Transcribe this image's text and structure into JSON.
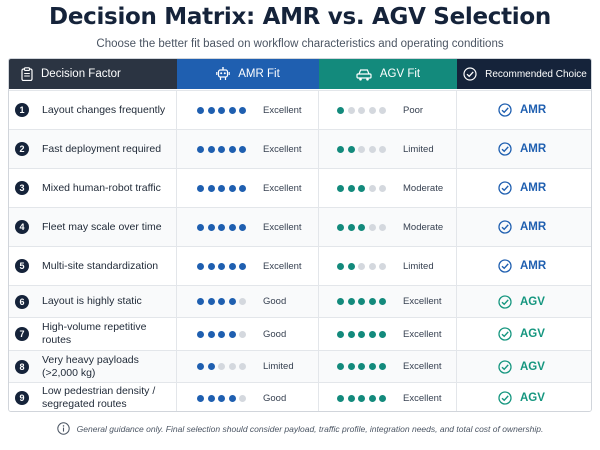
{
  "title": "Decision Matrix: AMR vs. AGV Selection",
  "subtitle": "Choose the better fit based on workflow characteristics and operating conditions",
  "header": {
    "factor_label": "Decision Factor",
    "amr_label": "AMR Fit",
    "agv_label": "AGV Fit",
    "recommended_label": "Recommended Choice"
  },
  "colors": {
    "amr": "#1f5fb0",
    "agv": "#138a7c",
    "dot_empty": "#d4d8de",
    "amr_rec": "#1f5fb0",
    "agv_rec": "#15967f"
  },
  "max_dots": 5,
  "rows": [
    {
      "num": "1",
      "factor": "Layout changes frequently",
      "amr": {
        "score": 5,
        "label": "Excellent"
      },
      "agv": {
        "score": 1,
        "label": "Poor"
      },
      "recommended": "AMR"
    },
    {
      "num": "2",
      "factor": "Fast deployment required",
      "amr": {
        "score": 5,
        "label": "Excellent"
      },
      "agv": {
        "score": 2,
        "label": "Limited"
      },
      "recommended": "AMR"
    },
    {
      "num": "3",
      "factor": "Mixed human-robot traffic",
      "amr": {
        "score": 5,
        "label": "Excellent"
      },
      "agv": {
        "score": 3,
        "label": "Moderate"
      },
      "recommended": "AMR"
    },
    {
      "num": "4",
      "factor": "Fleet may scale over time",
      "amr": {
        "score": 5,
        "label": "Excellent"
      },
      "agv": {
        "score": 3,
        "label": "Moderate"
      },
      "recommended": "AMR"
    },
    {
      "num": "5",
      "factor": "Multi-site standardization",
      "amr": {
        "score": 5,
        "label": "Excellent"
      },
      "agv": {
        "score": 2,
        "label": "Limited"
      },
      "recommended": "AMR"
    },
    {
      "num": "6",
      "factor": "Layout is highly static",
      "amr": {
        "score": 4,
        "label": "Good"
      },
      "agv": {
        "score": 5,
        "label": "Excellent"
      },
      "recommended": "AGV"
    },
    {
      "num": "7",
      "factor": "High-volume repetitive routes",
      "amr": {
        "score": 4,
        "label": "Good"
      },
      "agv": {
        "score": 5,
        "label": "Excellent"
      },
      "recommended": "AGV"
    },
    {
      "num": "8",
      "factor": "Very heavy payloads (>2,000 kg)",
      "amr": {
        "score": 2,
        "label": "Limited"
      },
      "agv": {
        "score": 5,
        "label": "Excellent"
      },
      "recommended": "AGV"
    },
    {
      "num": "9",
      "factor": "Low pedestrian density / segregated routes",
      "amr": {
        "score": 4,
        "label": "Good"
      },
      "agv": {
        "score": 5,
        "label": "Excellent"
      },
      "recommended": "AGV"
    }
  ],
  "footer": "General guidance only. Final selection should consider payload, traffic profile, integration needs, and total cost of ownership."
}
